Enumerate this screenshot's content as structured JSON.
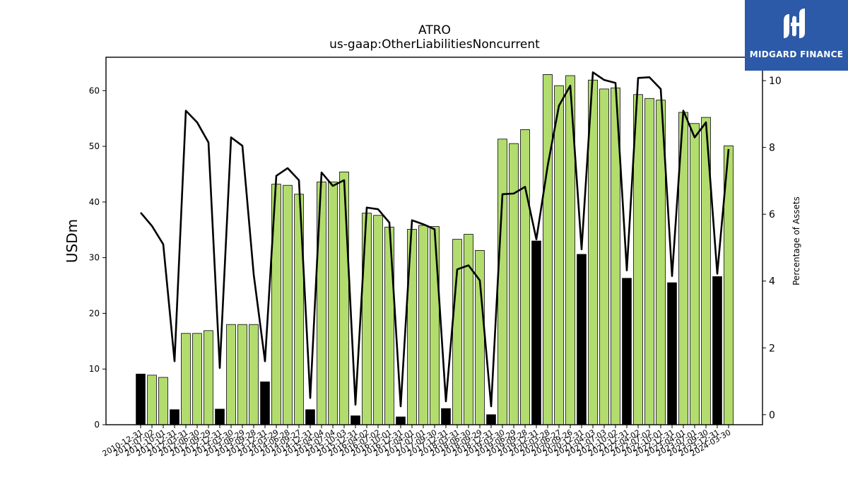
{
  "chart_data": {
    "type": "bar",
    "title": "ATRO",
    "subtitle": "us-gaap:OtherLiabilitiesNoncurrent",
    "ylabel": "USDm",
    "y2label": "Percentage of Assets",
    "ylim": [
      0,
      66
    ],
    "y2lim": [
      -0.3,
      10.7
    ],
    "yticks": [
      0,
      10,
      20,
      30,
      40,
      50,
      60
    ],
    "y2ticks": [
      0,
      2,
      4,
      6,
      8,
      10
    ],
    "colors": {
      "quarter_bar": "#b2dc6e",
      "annual_bar": "#000000",
      "line": "#000000"
    },
    "categories": [
      "2010-12-31",
      "2011-07-02",
      "2011-10-01",
      "2011-12-31",
      "2012-03-31",
      "2012-06-30",
      "2012-09-29",
      "2012-12-31",
      "2013-03-30",
      "2013-06-29",
      "2013-09-28",
      "2013-12-31",
      "2014-03-29",
      "2014-06-28",
      "2014-09-27",
      "2014-12-31",
      "2015-04-04",
      "2015-07-04",
      "2015-10-03",
      "2015-12-31",
      "2016-04-02",
      "2016-07-02",
      "2016-10-01",
      "2016-12-31",
      "2017-04-01",
      "2017-07-01",
      "2017-09-30",
      "2017-12-31",
      "2018-03-31",
      "2018-06-30",
      "2018-09-29",
      "2018-12-31",
      "2019-03-30",
      "2019-06-29",
      "2019-09-28",
      "2019-12-31",
      "2020-03-28",
      "2020-06-27",
      "2020-09-26",
      "2020-12-31",
      "2021-04-03",
      "2021-07-03",
      "2021-10-02",
      "2021-12-31",
      "2022-04-02",
      "2022-07-02",
      "2022-10-01",
      "2022-12-31",
      "2023-04-01",
      "2023-07-01",
      "2023-09-30",
      "2023-12-31",
      "2024-03-30"
    ],
    "series": [
      {
        "type": "bar",
        "values": [
          9.1,
          8.9,
          8.5,
          2.7,
          16.4,
          16.4,
          16.9,
          2.8,
          18.0,
          18.0,
          18.0,
          7.7,
          43.2,
          43.0,
          41.4,
          2.7,
          43.6,
          43.6,
          45.4,
          1.6,
          38.0,
          37.6,
          35.5,
          1.4,
          35.1,
          35.8,
          35.6,
          2.9,
          33.3,
          34.2,
          31.3,
          1.8,
          51.3,
          50.5,
          53.0,
          33.0,
          62.9,
          60.9,
          62.7,
          30.6,
          61.9,
          60.3,
          60.5,
          26.3,
          59.3,
          58.6,
          58.3,
          25.5,
          56.1,
          54.1,
          55.2,
          26.6,
          50.1
        ],
        "annual": [
          true,
          false,
          false,
          true,
          false,
          false,
          false,
          true,
          false,
          false,
          false,
          true,
          false,
          false,
          false,
          true,
          false,
          false,
          false,
          true,
          false,
          false,
          false,
          true,
          false,
          false,
          false,
          true,
          false,
          false,
          false,
          true,
          false,
          false,
          false,
          true,
          false,
          false,
          false,
          true,
          false,
          false,
          false,
          true,
          false,
          false,
          false,
          true,
          false,
          false,
          false,
          true,
          false
        ]
      },
      {
        "type": "line",
        "axis": "right",
        "values": [
          6.05,
          5.65,
          5.1,
          1.6,
          9.1,
          8.75,
          8.15,
          1.4,
          8.3,
          8.05,
          4.2,
          1.6,
          7.15,
          7.38,
          7.02,
          0.5,
          7.25,
          6.85,
          7.02,
          0.3,
          6.2,
          6.15,
          5.75,
          0.25,
          5.82,
          5.7,
          5.55,
          0.4,
          4.35,
          4.47,
          4.02,
          0.25,
          6.6,
          6.62,
          6.82,
          5.25,
          7.45,
          9.25,
          9.85,
          4.95,
          10.25,
          10.02,
          9.93,
          4.32,
          10.08,
          10.1,
          9.75,
          4.15,
          9.1,
          8.3,
          8.75,
          4.22,
          7.95
        ]
      }
    ]
  },
  "logo": {
    "text": "MIDGARD FINANCE",
    "bg": "#2c5aa8"
  }
}
